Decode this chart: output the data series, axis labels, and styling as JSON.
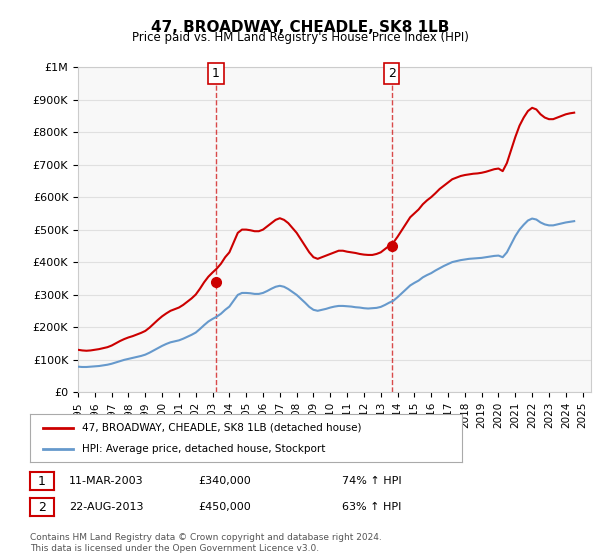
{
  "title": "47, BROADWAY, CHEADLE, SK8 1LB",
  "subtitle": "Price paid vs. HM Land Registry's House Price Index (HPI)",
  "ylabel_top": "£1M",
  "yticks": [
    0,
    100000,
    200000,
    300000,
    400000,
    500000,
    600000,
    700000,
    800000,
    900000,
    1000000
  ],
  "ytick_labels": [
    "£0",
    "£100K",
    "£200K",
    "£300K",
    "£400K",
    "£500K",
    "£600K",
    "£700K",
    "£800K",
    "£900K",
    "£1M"
  ],
  "xmin": 1995.0,
  "xmax": 2025.5,
  "ymin": 0,
  "ymax": 1000000,
  "red_line_color": "#cc0000",
  "blue_line_color": "#6699cc",
  "dashed_line_color": "#cc0000",
  "legend_label_red": "47, BROADWAY, CHEADLE, SK8 1LB (detached house)",
  "legend_label_blue": "HPI: Average price, detached house, Stockport",
  "event1_x": 2003.2,
  "event1_label": "1",
  "event1_date": "11-MAR-2003",
  "event1_price": "£340,000",
  "event1_hpi": "74% ↑ HPI",
  "event2_x": 2013.65,
  "event2_label": "2",
  "event2_date": "22-AUG-2013",
  "event2_price": "£450,000",
  "event2_hpi": "63% ↑ HPI",
  "footer": "Contains HM Land Registry data © Crown copyright and database right 2024.\nThis data is licensed under the Open Government Licence v3.0.",
  "hpi_red_data_x": [
    1995.0,
    1995.25,
    1995.5,
    1995.75,
    1996.0,
    1996.25,
    1996.5,
    1996.75,
    1997.0,
    1997.25,
    1997.5,
    1997.75,
    1998.0,
    1998.25,
    1998.5,
    1998.75,
    1999.0,
    1999.25,
    1999.5,
    1999.75,
    2000.0,
    2000.25,
    2000.5,
    2000.75,
    2001.0,
    2001.25,
    2001.5,
    2001.75,
    2002.0,
    2002.25,
    2002.5,
    2002.75,
    2003.0,
    2003.25,
    2003.5,
    2003.75,
    2004.0,
    2004.25,
    2004.5,
    2004.75,
    2005.0,
    2005.25,
    2005.5,
    2005.75,
    2006.0,
    2006.25,
    2006.5,
    2006.75,
    2007.0,
    2007.25,
    2007.5,
    2007.75,
    2008.0,
    2008.25,
    2008.5,
    2008.75,
    2009.0,
    2009.25,
    2009.5,
    2009.75,
    2010.0,
    2010.25,
    2010.5,
    2010.75,
    2011.0,
    2011.25,
    2011.5,
    2011.75,
    2012.0,
    2012.25,
    2012.5,
    2012.75,
    2013.0,
    2013.25,
    2013.5,
    2013.75,
    2014.0,
    2014.25,
    2014.5,
    2014.75,
    2015.0,
    2015.25,
    2015.5,
    2015.75,
    2016.0,
    2016.25,
    2016.5,
    2016.75,
    2017.0,
    2017.25,
    2017.5,
    2017.75,
    2018.0,
    2018.25,
    2018.5,
    2018.75,
    2019.0,
    2019.25,
    2019.5,
    2019.75,
    2020.0,
    2020.25,
    2020.5,
    2020.75,
    2021.0,
    2021.25,
    2021.5,
    2021.75,
    2022.0,
    2022.25,
    2022.5,
    2022.75,
    2023.0,
    2023.25,
    2023.5,
    2023.75,
    2024.0,
    2024.25,
    2024.5
  ],
  "hpi_red_data_y": [
    130000,
    128000,
    127000,
    128000,
    130000,
    132000,
    135000,
    138000,
    143000,
    150000,
    157000,
    163000,
    168000,
    172000,
    177000,
    182000,
    188000,
    198000,
    210000,
    222000,
    233000,
    242000,
    250000,
    255000,
    260000,
    268000,
    278000,
    288000,
    300000,
    318000,
    338000,
    355000,
    368000,
    380000,
    395000,
    415000,
    430000,
    460000,
    490000,
    500000,
    500000,
    498000,
    495000,
    495000,
    500000,
    510000,
    520000,
    530000,
    535000,
    530000,
    520000,
    505000,
    490000,
    470000,
    450000,
    430000,
    415000,
    410000,
    415000,
    420000,
    425000,
    430000,
    435000,
    435000,
    432000,
    430000,
    428000,
    425000,
    423000,
    422000,
    422000,
    425000,
    430000,
    440000,
    450000,
    460000,
    478000,
    498000,
    518000,
    538000,
    550000,
    562000,
    578000,
    590000,
    600000,
    612000,
    625000,
    635000,
    645000,
    655000,
    660000,
    665000,
    668000,
    670000,
    672000,
    673000,
    675000,
    678000,
    682000,
    686000,
    688000,
    680000,
    705000,
    745000,
    785000,
    820000,
    845000,
    865000,
    875000,
    870000,
    855000,
    845000,
    840000,
    840000,
    845000,
    850000,
    855000,
    858000,
    860000
  ],
  "hpi_blue_data_x": [
    1995.0,
    1995.25,
    1995.5,
    1995.75,
    1996.0,
    1996.25,
    1996.5,
    1996.75,
    1997.0,
    1997.25,
    1997.5,
    1997.75,
    1998.0,
    1998.25,
    1998.5,
    1998.75,
    1999.0,
    1999.25,
    1999.5,
    1999.75,
    2000.0,
    2000.25,
    2000.5,
    2000.75,
    2001.0,
    2001.25,
    2001.5,
    2001.75,
    2002.0,
    2002.25,
    2002.5,
    2002.75,
    2003.0,
    2003.25,
    2003.5,
    2003.75,
    2004.0,
    2004.25,
    2004.5,
    2004.75,
    2005.0,
    2005.25,
    2005.5,
    2005.75,
    2006.0,
    2006.25,
    2006.5,
    2006.75,
    2007.0,
    2007.25,
    2007.5,
    2007.75,
    2008.0,
    2008.25,
    2008.5,
    2008.75,
    2009.0,
    2009.25,
    2009.5,
    2009.75,
    2010.0,
    2010.25,
    2010.5,
    2010.75,
    2011.0,
    2011.25,
    2011.5,
    2011.75,
    2012.0,
    2012.25,
    2012.5,
    2012.75,
    2013.0,
    2013.25,
    2013.5,
    2013.75,
    2014.0,
    2014.25,
    2014.5,
    2014.75,
    2015.0,
    2015.25,
    2015.5,
    2015.75,
    2016.0,
    2016.25,
    2016.5,
    2016.75,
    2017.0,
    2017.25,
    2017.5,
    2017.75,
    2018.0,
    2018.25,
    2018.5,
    2018.75,
    2019.0,
    2019.25,
    2019.5,
    2019.75,
    2020.0,
    2020.25,
    2020.5,
    2020.75,
    2021.0,
    2021.25,
    2021.5,
    2021.75,
    2022.0,
    2022.25,
    2022.5,
    2022.75,
    2023.0,
    2023.25,
    2023.5,
    2023.75,
    2024.0,
    2024.25,
    2024.5
  ],
  "hpi_blue_data_y": [
    78000,
    77000,
    77000,
    78000,
    79000,
    80000,
    82000,
    84000,
    87000,
    91000,
    95000,
    99000,
    102000,
    105000,
    108000,
    111000,
    115000,
    121000,
    128000,
    135000,
    142000,
    148000,
    153000,
    156000,
    159000,
    164000,
    170000,
    176000,
    183000,
    194000,
    206000,
    217000,
    225000,
    232000,
    241000,
    253000,
    263000,
    281000,
    299000,
    305000,
    305000,
    304000,
    302000,
    302000,
    305000,
    311000,
    318000,
    324000,
    327000,
    324000,
    317000,
    308000,
    299000,
    287000,
    275000,
    262000,
    253000,
    250000,
    253000,
    256000,
    260000,
    263000,
    265000,
    265000,
    264000,
    263000,
    261000,
    260000,
    258000,
    257000,
    258000,
    259000,
    262000,
    268000,
    275000,
    281000,
    292000,
    304000,
    316000,
    328000,
    336000,
    343000,
    353000,
    360000,
    366000,
    374000,
    381000,
    388000,
    394000,
    400000,
    403000,
    406000,
    408000,
    410000,
    411000,
    412000,
    413000,
    415000,
    417000,
    419000,
    420000,
    415000,
    430000,
    455000,
    480000,
    500000,
    515000,
    528000,
    534000,
    531000,
    522000,
    516000,
    513000,
    513000,
    516000,
    519000,
    522000,
    524000,
    526000
  ],
  "sale1_x": 2003.2,
  "sale1_y": 340000,
  "sale2_x": 2013.65,
  "sale2_y": 450000,
  "bg_color": "#ffffff",
  "grid_color": "#e0e0e0",
  "plot_bg_color": "#f8f8f8"
}
